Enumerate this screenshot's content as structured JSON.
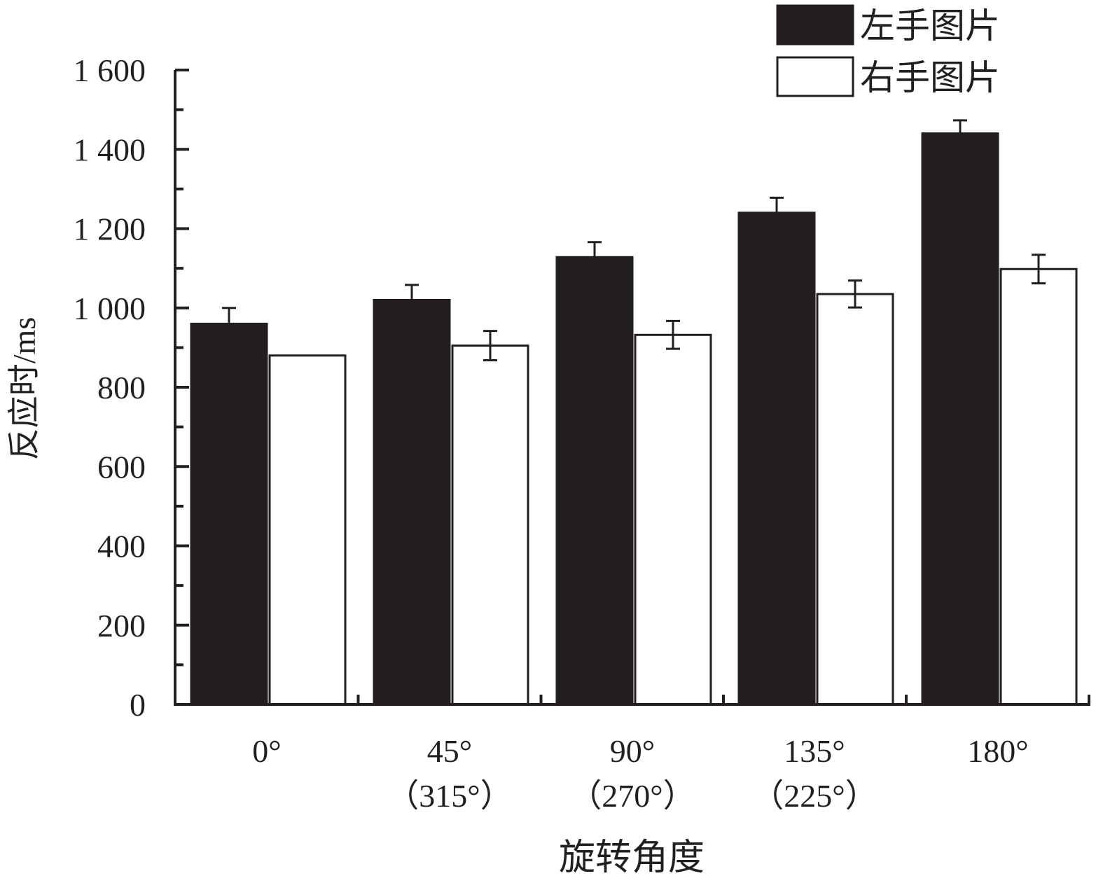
{
  "chart_data": {
    "type": "bar",
    "categories": [
      [
        "0°"
      ],
      [
        "45°",
        "（315°）"
      ],
      [
        "90°",
        "（270°）"
      ],
      [
        "135°",
        "（225°）"
      ],
      [
        "180°"
      ]
    ],
    "series": [
      {
        "name": "左手图片",
        "color": "#231f20",
        "values": [
          960,
          1020,
          1128,
          1240,
          1440
        ],
        "errors": [
          40,
          38,
          38,
          38,
          33
        ]
      },
      {
        "name": "右手图片",
        "color": "#ffffff",
        "values": [
          880,
          905,
          932,
          1035,
          1098
        ],
        "errors": [
          0,
          37,
          35,
          34,
          36
        ]
      }
    ],
    "xlabel": "旋转角度",
    "ylabel": "反应时/ms",
    "ylim": [
      0,
      1600
    ],
    "yticks": [
      0,
      200,
      400,
      600,
      800,
      1000,
      1200,
      1400,
      1600
    ],
    "ytick_labels": [
      "0",
      "200",
      "400",
      "600",
      "800",
      "1 000",
      "1 200",
      "1 400",
      "1 600"
    ],
    "grid": false,
    "legend_position": "top-right"
  }
}
